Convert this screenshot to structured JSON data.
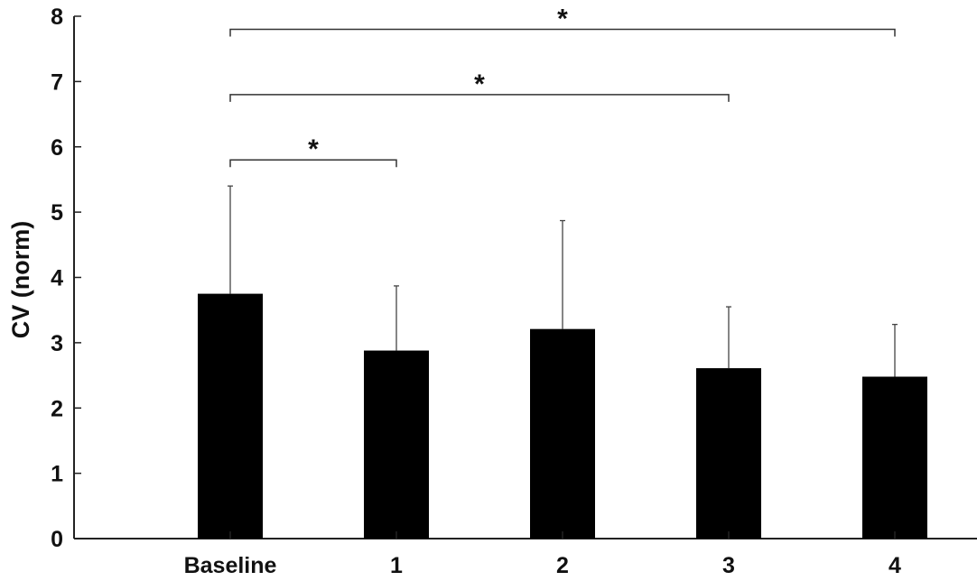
{
  "chart_data": {
    "type": "bar",
    "categories": [
      "Baseline",
      "1",
      "2",
      "3",
      "4"
    ],
    "values": [
      3.75,
      2.88,
      3.21,
      2.61,
      2.48
    ],
    "error_upper": [
      5.4,
      3.87,
      4.87,
      3.55,
      3.28
    ],
    "title": "",
    "xlabel": "",
    "ylabel": "CV (norm)",
    "ylim": [
      0,
      8
    ],
    "yticks": [
      "0",
      "1",
      "2",
      "3",
      "4",
      "5",
      "6",
      "7",
      "8"
    ],
    "bar_color": "#000000",
    "grid": false,
    "legend": "none",
    "significance": [
      {
        "from": "Baseline",
        "to": "1",
        "label": "*",
        "level": 5.8
      },
      {
        "from": "Baseline",
        "to": "3",
        "label": "*",
        "level": 6.8
      },
      {
        "from": "Baseline",
        "to": "4",
        "label": "*",
        "level": 7.8
      }
    ]
  }
}
